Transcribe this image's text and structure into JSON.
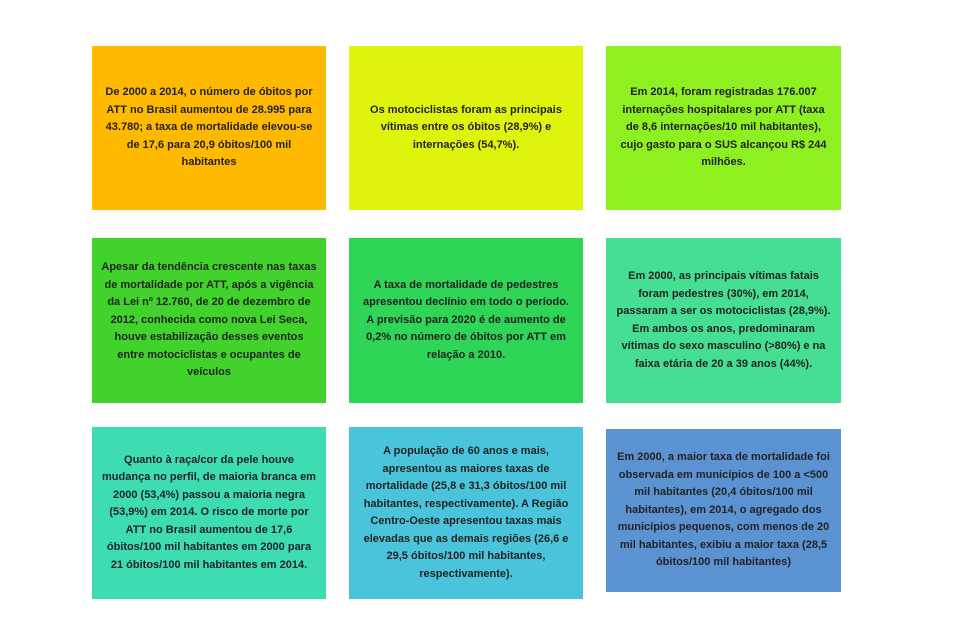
{
  "page": {
    "background_color": "#FFFFFF",
    "text_color": "#232323"
  },
  "cards": [
    {
      "id": "deaths-growth-2000-2014",
      "color": "#FFB900",
      "text": "De 2000 a 2014, o número de óbitos por ATT no Brasil aumentou de 28.995 para 43.780; a taxa de mortalidade elevou-se de 17,6 para 20,9 óbitos/100 mil habitantes"
    },
    {
      "id": "motorcyclists-main-victims",
      "color": "#DFF40D",
      "text": "Os motociclistas foram as principais vítimas entre os óbitos (28,9%) e internações (54,7%)."
    },
    {
      "id": "hospitalizations-2014",
      "color": "#8FF021",
      "text": "Em 2014, foram registradas 176.007 internações hospitalares por ATT (taxa de 8,6 internações/10 mil habitantes), cujo gasto para o SUS alcançou R$ 244 milhões."
    },
    {
      "id": "lei-seca-stabilization",
      "color": "#41D32C",
      "text": "Apesar da tendência crescente nas taxas de mortalidade por ATT, após a vigência da Lei nº 12.760, de 20 de dezembro de 2012, conhecida como nova Lei Seca, houve estabilização desses eventos entre motociclistas e ocupantes de veículos"
    },
    {
      "id": "pedestrian-decline-forecast-2020",
      "color": "#2FD556",
      "text": "A taxa de mortalidade de pedestres apresentou declínio em todo o período. A previsão para 2020 é de aumento de 0,2% no número de óbitos por ATT em relação a 2010."
    },
    {
      "id": "victim-profile-change",
      "color": "#46DE92",
      "text": "Em 2000, as principais vítimas fatais foram pedestres (30%), em 2014, passaram a ser os motociclistas (28,9%). Em ambos os anos, predominaram vítimas do sexo masculino (>80%) e na faixa etária de 20 a 39 anos (44%)."
    },
    {
      "id": "race-profile-change",
      "color": "#3EDCB1",
      "text": "Quanto à raça/cor da pele houve mudança no perfil, de maioria branca em 2000 (53,4%) passou a maioria negra (53,9%) em 2014. O risco de morte por ATT no Brasil aumentou de 17,6 óbitos/100 mil habitantes em 2000 para 21 óbitos/100 mil habitantes em 2014."
    },
    {
      "id": "elderly-and-region-rates",
      "color": "#4AC4DB",
      "text": "A população de 60 anos e mais, apresentou as maiores taxas de mortalidade (25,8 e 31,3 óbitos/100 mil habitantes, respectivamente). A Região Centro-Oeste apresentou taxas mais elevadas que as demais regiões (26,6 e 29,5 óbitos/100 mil habitantes, respectivamente)."
    },
    {
      "id": "municipality-size-rates",
      "color": "#5B92D2",
      "text": "Em 2000, a maior taxa de mortalidade foi observada em municípios de 100 a <500 mil habitantes (20,4 óbitos/100 mil habitantes), em 2014, o agregado dos municípios pequenos, com menos de 20 mil habitantes, exibiu a maior taxa (28,5 óbitos/100 mil habitantes)"
    }
  ]
}
